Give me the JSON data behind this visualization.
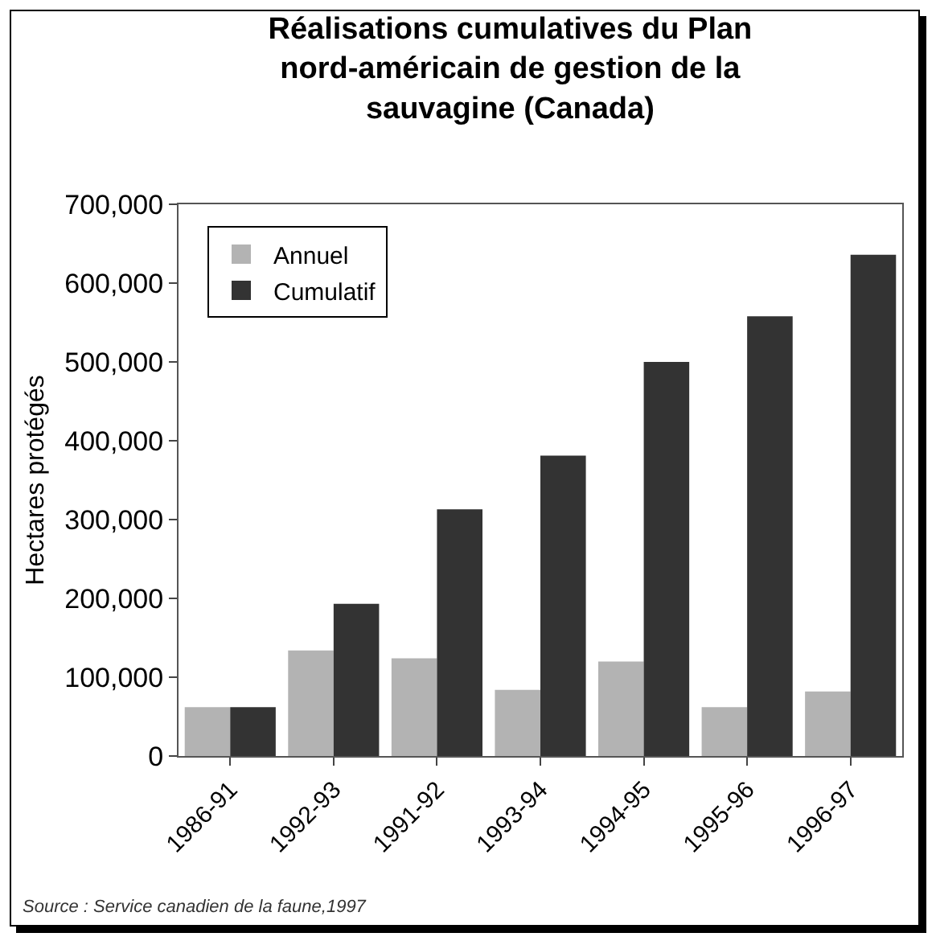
{
  "chart_data": {
    "type": "bar",
    "title": "Réalisations cumulatives du Plan\nnord-américain de gestion de la\nsauvagine (Canada)",
    "ylabel": "Hectares protégés",
    "categories": [
      "1986-91",
      "1992-93",
      "1991-92",
      "1993-94",
      "1994-95",
      "1995-96",
      "1996-97"
    ],
    "series": [
      {
        "name": "Annuel",
        "color": "#b3b3b3",
        "values": [
          62000,
          134000,
          124000,
          84000,
          120000,
          62000,
          82000
        ]
      },
      {
        "name": "Cumulatif",
        "color": "#333333",
        "values": [
          62000,
          193000,
          313000,
          381000,
          500000,
          558000,
          636000
        ]
      }
    ],
    "ylim": [
      0,
      700000
    ],
    "yticks": [
      {
        "value": 0,
        "label": "0"
      },
      {
        "value": 100000,
        "label": "100,000"
      },
      {
        "value": 200000,
        "label": "200,000"
      },
      {
        "value": 300000,
        "label": "300,000"
      },
      {
        "value": 400000,
        "label": "400,000"
      },
      {
        "value": 500000,
        "label": "500,000"
      },
      {
        "value": 600000,
        "label": "600,000"
      },
      {
        "value": 700000,
        "label": "700,000"
      }
    ],
    "grid": false,
    "legend": "top left",
    "annotations": [
      "Source : Service canadien de la faune,1997"
    ]
  }
}
